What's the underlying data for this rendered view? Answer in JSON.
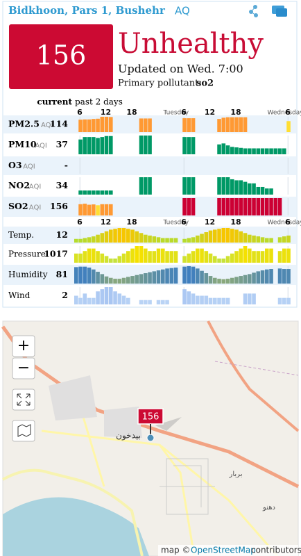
{
  "header": {
    "title": "Bidkhoon, Pars 1, Bushehr",
    "suffix": "AQ"
  },
  "summary": {
    "aqi": 156,
    "level": "Unhealthy",
    "updated": "Updated on Wed. 7:00",
    "pollutant_label": "Primary pollutant:",
    "pollutant": "so2"
  },
  "columns": {
    "current": "current",
    "history": "past 2 days"
  },
  "time_axis": [
    "6",
    "12",
    "18",
    "Tuesday",
    "6",
    "12",
    "18",
    "Wednesday",
    "6"
  ],
  "pollutants": [
    {
      "name": "PM2.5",
      "unit": "AQI",
      "value": 114,
      "history": [
        null,
        102,
        104,
        104,
        108,
        110,
        126,
        126,
        124,
        null,
        null,
        null,
        null,
        null,
        null,
        112,
        112,
        112,
        null,
        null,
        null,
        null,
        null,
        null,
        null,
        114,
        114,
        114,
        null,
        null,
        null,
        null,
        null,
        108,
        118,
        122,
        122,
        122,
        122,
        122,
        null,
        null,
        null,
        null,
        null,
        null,
        null,
        null,
        null,
        90
      ]
    },
    {
      "name": "PM10",
      "unit": "AQI",
      "value": 37,
      "history": [
        null,
        30,
        35,
        35,
        35,
        33,
        35,
        37,
        37,
        null,
        null,
        null,
        null,
        null,
        null,
        38,
        38,
        38,
        null,
        null,
        null,
        null,
        null,
        null,
        null,
        35,
        35,
        35,
        null,
        null,
        null,
        null,
        null,
        20,
        22,
        18,
        15,
        14,
        13,
        12,
        12,
        12,
        12,
        12,
        12,
        12,
        12,
        12,
        12,
        null
      ]
    },
    {
      "name": "O3",
      "unit": "AQI",
      "value": "-",
      "history": [
        null,
        null,
        null,
        null,
        null,
        null,
        null,
        null,
        null,
        null,
        null,
        null,
        null,
        null,
        null,
        null,
        null,
        null,
        null,
        null,
        null,
        null,
        null,
        null,
        null,
        null,
        null,
        null,
        null,
        null,
        null,
        null,
        null,
        null,
        null,
        null,
        null,
        null,
        null,
        null,
        null,
        null,
        null,
        null,
        null,
        null,
        null,
        null,
        null,
        null
      ]
    },
    {
      "name": "NO2",
      "unit": "AQI",
      "value": 34,
      "history": [
        null,
        8,
        8,
        8,
        8,
        8,
        8,
        8,
        8,
        null,
        null,
        null,
        null,
        null,
        null,
        34,
        34,
        34,
        null,
        null,
        null,
        null,
        null,
        null,
        null,
        34,
        34,
        34,
        null,
        null,
        null,
        null,
        null,
        34,
        34,
        34,
        30,
        28,
        28,
        25,
        22,
        22,
        15,
        15,
        12,
        12,
        null,
        null,
        null,
        null
      ]
    },
    {
      "name": "SO2",
      "unit": "AQI",
      "value": 156,
      "history": [
        null,
        110,
        115,
        105,
        108,
        100,
        110,
        110,
        110,
        null,
        null,
        null,
        null,
        null,
        null,
        null,
        null,
        null,
        null,
        null,
        null,
        null,
        null,
        null,
        null,
        170,
        170,
        170,
        null,
        null,
        null,
        null,
        null,
        170,
        170,
        170,
        170,
        170,
        170,
        170,
        170,
        170,
        170,
        170,
        170,
        170,
        170,
        170,
        null,
        null
      ]
    }
  ],
  "weather": [
    {
      "name": "Temp.",
      "value": 12,
      "colors": [
        "#b5dc2e",
        "#f7c600"
      ],
      "history": [
        8,
        8,
        9,
        10,
        11,
        13,
        15,
        17,
        19,
        20,
        21,
        21,
        20,
        19,
        17,
        15,
        13,
        12,
        11,
        10,
        9,
        9,
        9,
        9,
        null,
        8,
        9,
        10,
        12,
        14,
        16,
        18,
        19,
        20,
        21,
        21,
        20,
        19,
        17,
        15,
        13,
        12,
        11,
        10,
        9,
        9,
        null,
        10,
        11,
        12
      ]
    },
    {
      "name": "Pressure",
      "value": 1017,
      "colors": [
        "#c6e23c",
        "#f5e100"
      ],
      "history": [
        1015,
        1015,
        1016,
        1017,
        1017,
        1016,
        1015,
        1014,
        1013,
        1013,
        1014,
        1015,
        1016,
        1017,
        1018,
        1018,
        1017,
        1016,
        1016,
        1017,
        1017,
        1016,
        1016,
        1016,
        null,
        1014,
        1015,
        1016,
        1017,
        1017,
        1016,
        1015,
        1014,
        1013,
        1013,
        1014,
        1015,
        1016,
        1017,
        1018,
        1017,
        1016,
        1016,
        1016,
        1017,
        1017,
        null,
        1016,
        1017,
        1017
      ]
    },
    {
      "name": "Humidity",
      "value": 81,
      "colors": [
        "#8aa87c",
        "#3f7fbf"
      ],
      "history": [
        85,
        86,
        86,
        84,
        80,
        75,
        70,
        65,
        62,
        60,
        60,
        62,
        64,
        66,
        68,
        70,
        72,
        74,
        76,
        78,
        80,
        82,
        83,
        84,
        null,
        86,
        87,
        86,
        82,
        77,
        72,
        66,
        62,
        60,
        59,
        60,
        62,
        64,
        66,
        68,
        70,
        73,
        76,
        78,
        80,
        81,
        null,
        82,
        81,
        81
      ]
    },
    {
      "name": "Wind",
      "value": 2,
      "colors": [
        "#b9d3f5",
        "#a9c6f2"
      ],
      "history": [
        3,
        2,
        4,
        2,
        2,
        5,
        6,
        7,
        7,
        5,
        4,
        3,
        2,
        null,
        null,
        1,
        1,
        1,
        null,
        1,
        1,
        1,
        null,
        null,
        null,
        6,
        5,
        4,
        3,
        3,
        3,
        2,
        2,
        2,
        2,
        2,
        null,
        null,
        null,
        4,
        4,
        4,
        null,
        null,
        null,
        null,
        null,
        2,
        2,
        2
      ]
    }
  ],
  "map": {
    "zoom_in": "+",
    "zoom_out": "−",
    "marker": 156,
    "labels": [
      "بیدخون",
      "بربار",
      "دهنو"
    ],
    "attribution_prefix": "map ©",
    "attribution_link": "OpenStreetMap",
    "attribution_suffix": "contributors"
  }
}
